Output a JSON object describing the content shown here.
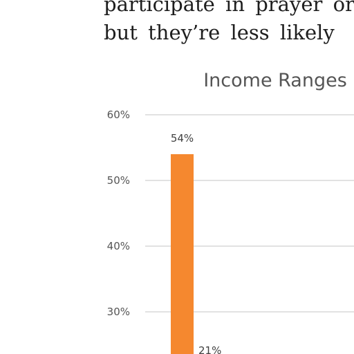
{
  "text": {
    "lines": [
      "participate in prayer or",
      "but they’re less likely"
    ]
  },
  "chart_data": {
    "type": "bar",
    "title": "Income Ranges",
    "xlabel": "",
    "ylabel": "",
    "ylim": [
      0.2,
      0.6
    ],
    "yticks": [
      0.3,
      0.4,
      0.5,
      0.6
    ],
    "ytick_labels": [
      "30%",
      "40%",
      "50%",
      "60%"
    ],
    "grid": true,
    "legend": "none",
    "color": "#f5882f",
    "series": [
      {
        "values": [
          0.54,
          0.21
        ],
        "labels": [
          "54%",
          "21%"
        ]
      }
    ]
  }
}
